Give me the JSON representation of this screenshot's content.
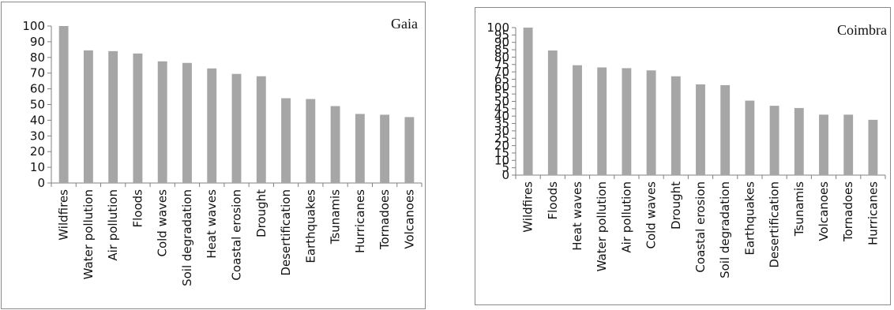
{
  "chart_data": [
    {
      "type": "bar",
      "title": "Gaia",
      "xlabel": "",
      "ylabel": "",
      "ylim": [
        0,
        100
      ],
      "yticks": [
        0,
        10,
        20,
        30,
        40,
        50,
        60,
        70,
        80,
        90,
        100
      ],
      "categories": [
        "Wildfires",
        "Water pollution",
        "Air pollution",
        "Floods",
        "Cold waves",
        "Soil degradation",
        "Heat waves",
        "Coastal erosion",
        "Drought",
        "Desertification",
        "Earthquakes",
        "Tsunamis",
        "Hurricanes",
        "Tornadoes",
        "Volcanoes"
      ],
      "values": [
        100,
        84.5,
        84,
        82.5,
        77.5,
        76.5,
        73,
        69.5,
        68,
        54,
        53.5,
        49,
        44,
        43.5,
        42
      ],
      "bar_color": "#a6a6a6",
      "grid": false,
      "legend": "none"
    },
    {
      "type": "bar",
      "title": "Coimbra",
      "xlabel": "",
      "ylabel": "",
      "ylim": [
        0,
        100
      ],
      "yticks": [
        0,
        5,
        10,
        15,
        20,
        25,
        30,
        35,
        40,
        45,
        50,
        55,
        60,
        65,
        70,
        75,
        80,
        85,
        90,
        95,
        100
      ],
      "categories": [
        "Wildfires",
        "Floods",
        "Heat waves",
        "Water pollution",
        "Air pollution",
        "Cold waves",
        "Drought",
        "Coastal erosion",
        "Soil degradation",
        "Earthquakes",
        "Desertification",
        "Tsunamis",
        "Volcanoes",
        "Tornadoes",
        "Hurricanes"
      ],
      "values": [
        100,
        84.5,
        74.5,
        73,
        72.5,
        71,
        67,
        61.5,
        61,
        50.5,
        47,
        45.5,
        41,
        41,
        37.5
      ],
      "bar_color": "#a6a6a6",
      "grid": false,
      "legend": "none"
    }
  ]
}
